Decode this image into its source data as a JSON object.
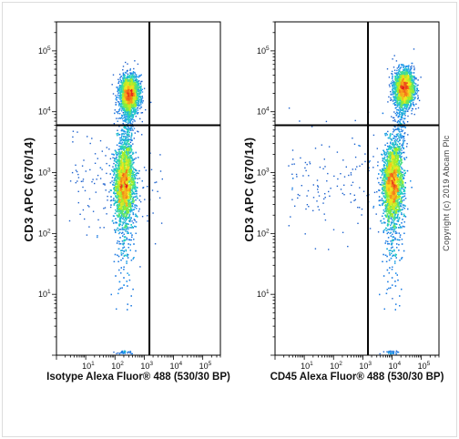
{
  "copyright": "Copyright (c) 2019 Abcam Plc",
  "chart_data": [
    {
      "type": "scatter",
      "title": "",
      "xlabel": "Isotype Alexa Fluor® 488  (530/30 BP)",
      "ylabel": "CD3 APC (670/14)",
      "x_scale": "log",
      "y_scale": "log",
      "x_ticks": [
        "10^1",
        "10^2",
        "10^3",
        "10^4",
        "10^5"
      ],
      "y_ticks": [
        "10^1",
        "10^2",
        "10^3",
        "10^4",
        "10^5"
      ],
      "xlim": [
        1,
        400000
      ],
      "ylim": [
        1,
        300000
      ],
      "gate": {
        "x": 1500,
        "y": 6000
      },
      "populations": [
        {
          "name": "",
          "x_center": 300,
          "y_center": 20000,
          "events": 2200
        },
        {
          "name": "",
          "x_center": 200,
          "y_center": 700,
          "events": 4200
        }
      ],
      "color_scale": [
        "#1a2aa6",
        "#1e8ff0",
        "#22d3c0",
        "#8ef02e",
        "#f5e61f",
        "#f57a1a",
        "#e31a1c"
      ]
    },
    {
      "type": "scatter",
      "title": "",
      "xlabel": "CD45  Alexa Fluor® 488  (530/30 BP)",
      "ylabel": "CD3 APC (670/14)",
      "x_scale": "log",
      "y_scale": "log",
      "x_ticks": [
        "10^1",
        "10^2",
        "10^3",
        "10^4",
        "10^5"
      ],
      "y_ticks": [
        "10^1",
        "10^2",
        "10^3",
        "10^4",
        "10^5"
      ],
      "xlim": [
        1,
        400000
      ],
      "ylim": [
        1,
        300000
      ],
      "gate": {
        "x": 1500,
        "y": 6000
      },
      "populations": [
        {
          "name": "",
          "x_center": 25000,
          "y_center": 25000,
          "events": 2200
        },
        {
          "name": "",
          "x_center": 10000,
          "y_center": 700,
          "events": 4200
        }
      ],
      "color_scale": [
        "#1a2aa6",
        "#1e8ff0",
        "#22d3c0",
        "#8ef02e",
        "#f5e61f",
        "#f57a1a",
        "#e31a1c"
      ]
    }
  ]
}
